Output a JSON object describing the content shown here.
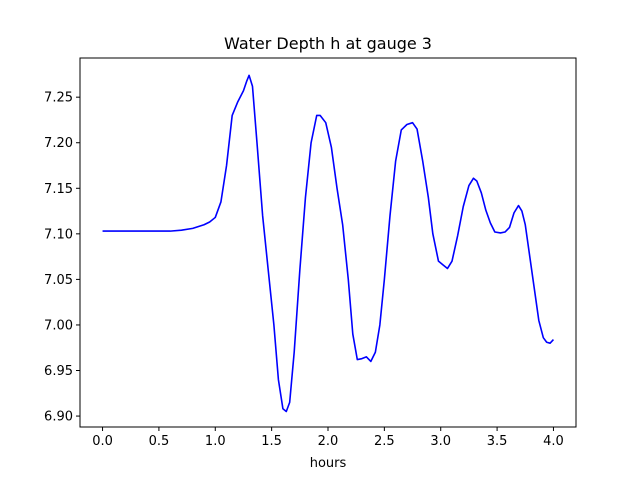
{
  "chart_data": {
    "type": "line",
    "title": "Water Depth h at gauge 3",
    "xlabel": "hours",
    "ylabel": "",
    "xlim": [
      -0.2,
      4.2
    ],
    "ylim": [
      6.888,
      7.293
    ],
    "xticks": [
      0.0,
      0.5,
      1.0,
      1.5,
      2.0,
      2.5,
      3.0,
      3.5,
      4.0
    ],
    "xtick_labels": [
      "0.0",
      "0.5",
      "1.0",
      "1.5",
      "2.0",
      "2.5",
      "3.0",
      "3.5",
      "4.0"
    ],
    "yticks": [
      6.9,
      6.95,
      7.0,
      7.05,
      7.1,
      7.15,
      7.2,
      7.25
    ],
    "ytick_labels": [
      "6.90",
      "6.95",
      "7.00",
      "7.05",
      "7.10",
      "7.15",
      "7.20",
      "7.25"
    ],
    "grid": false,
    "series": [
      {
        "color": "#0000ff",
        "x": [
          0.0,
          0.3,
          0.6,
          0.7,
          0.8,
          0.9,
          0.95,
          1.0,
          1.05,
          1.1,
          1.15,
          1.2,
          1.25,
          1.28,
          1.3,
          1.33,
          1.37,
          1.42,
          1.47,
          1.52,
          1.56,
          1.6,
          1.63,
          1.66,
          1.7,
          1.75,
          1.8,
          1.85,
          1.9,
          1.93,
          1.98,
          2.03,
          2.08,
          2.13,
          2.18,
          2.22,
          2.26,
          2.3,
          2.34,
          2.38,
          2.42,
          2.46,
          2.5,
          2.55,
          2.6,
          2.65,
          2.7,
          2.75,
          2.79,
          2.84,
          2.89,
          2.93,
          2.98,
          3.02,
          3.06,
          3.1,
          3.15,
          3.2,
          3.25,
          3.29,
          3.32,
          3.36,
          3.4,
          3.44,
          3.48,
          3.53,
          3.57,
          3.61,
          3.65,
          3.69,
          3.72,
          3.75,
          3.79,
          3.83,
          3.87,
          3.91,
          3.94,
          3.97,
          4.0
        ],
        "values": [
          7.103,
          7.103,
          7.103,
          7.104,
          7.106,
          7.11,
          7.113,
          7.118,
          7.135,
          7.175,
          7.23,
          7.245,
          7.257,
          7.268,
          7.274,
          7.262,
          7.2,
          7.12,
          7.06,
          7.0,
          6.94,
          6.908,
          6.905,
          6.915,
          6.97,
          7.06,
          7.14,
          7.2,
          7.23,
          7.23,
          7.222,
          7.195,
          7.15,
          7.11,
          7.05,
          6.99,
          6.962,
          6.963,
          6.965,
          6.96,
          6.97,
          7.0,
          7.05,
          7.12,
          7.18,
          7.214,
          7.22,
          7.222,
          7.215,
          7.18,
          7.14,
          7.1,
          7.07,
          7.066,
          7.062,
          7.07,
          7.098,
          7.13,
          7.153,
          7.161,
          7.158,
          7.145,
          7.126,
          7.112,
          7.102,
          7.101,
          7.102,
          7.107,
          7.123,
          7.131,
          7.125,
          7.11,
          7.075,
          7.04,
          7.005,
          6.986,
          6.981,
          6.98,
          6.984
        ]
      }
    ]
  }
}
